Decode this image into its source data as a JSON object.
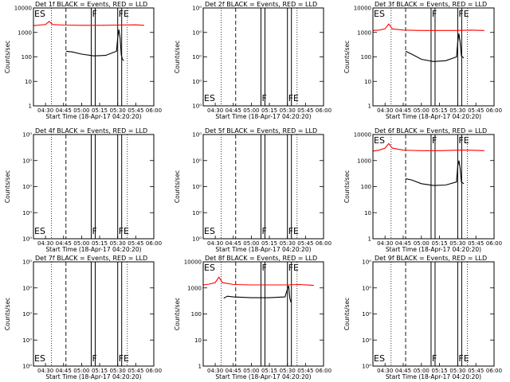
{
  "chart_data": [
    {
      "type": "line",
      "title": "Det 1f BLACK = Events, RED = LLD",
      "xlabel": "Start Time (18-Apr-17 04:20:20)",
      "ylabel": "Counts/sec",
      "yscale": "log",
      "ylim": [
        1,
        10000
      ],
      "xlim": [
        "04:20",
        "06:00"
      ],
      "ytick_labels": [
        "1",
        "10",
        "100",
        "1000",
        "10000"
      ],
      "xtick_labels": [
        "04:30",
        "04:45",
        "05:00",
        "05:15",
        "05:30",
        "05:45",
        "06:00"
      ],
      "markers": [
        {
          "label": "ES",
          "time": "04:20"
        },
        {
          "label": "F",
          "time": "05:08"
        },
        {
          "label": "FE",
          "time": "05:30"
        }
      ],
      "series": [
        {
          "color": "#ff0000",
          "x": [
            "04:20",
            "04:25",
            "04:30",
            "04:33",
            "04:36",
            "04:45",
            "05:00",
            "05:15",
            "05:30",
            "05:45",
            "05:52"
          ],
          "y": [
            1900,
            2000,
            2100,
            2800,
            2100,
            2000,
            1950,
            1950,
            2000,
            2050,
            1950
          ]
        },
        {
          "color": "#000000",
          "x": [
            "04:47",
            "04:52",
            "05:00",
            "05:10",
            "05:20",
            "05:29",
            "05:30",
            "05:31",
            "05:32",
            "05:33",
            "05:34",
            "05:35"
          ],
          "y": [
            170,
            160,
            130,
            110,
            115,
            170,
            600,
            1300,
            600,
            120,
            80,
            70
          ]
        }
      ]
    },
    {
      "type": "line",
      "title": "Det 2f BLACK = Events, RED = LLD",
      "xlabel": "Start Time (18-Apr-17 04:20:20)",
      "ylabel": "Counts/sec",
      "yscale": "log",
      "ylim": [
        1,
        10
      ],
      "xlim": [
        "04:20",
        "06:00"
      ],
      "ytick_labels": [
        "10⁰",
        "10⁰",
        "10⁰",
        "10⁰",
        "10⁰"
      ],
      "xtick_labels": [
        "04:30",
        "04:45",
        "05:00",
        "05:15",
        "05:30",
        "05:45",
        "06:00"
      ],
      "markers": [
        {
          "label": "ES",
          "time": "04:20"
        },
        {
          "label": "F",
          "time": "05:08"
        },
        {
          "label": "FE",
          "time": "05:30"
        }
      ],
      "series": []
    },
    {
      "type": "line",
      "title": "Det 3f BLACK = Events, RED = LLD",
      "xlabel": "Start Time (18-Apr-17 04:20:20)",
      "ylabel": "Counts/sec",
      "yscale": "log",
      "ylim": [
        1,
        10000
      ],
      "xlim": [
        "04:20",
        "06:00"
      ],
      "ytick_labels": [
        "1",
        "10",
        "100",
        "1000",
        "10000"
      ],
      "xtick_labels": [
        "04:30",
        "04:45",
        "05:00",
        "05:15",
        "05:30",
        "05:45",
        "06:00"
      ],
      "markers": [
        {
          "label": "ES",
          "time": "04:20"
        },
        {
          "label": "F",
          "time": "05:08"
        },
        {
          "label": "FE",
          "time": "05:30"
        }
      ],
      "series": [
        {
          "color": "#ff0000",
          "x": [
            "04:20",
            "04:25",
            "04:30",
            "04:33",
            "04:36",
            "04:45",
            "05:00",
            "05:15",
            "05:30",
            "05:40",
            "05:52"
          ],
          "y": [
            1200,
            1250,
            1400,
            2200,
            1400,
            1250,
            1200,
            1200,
            1200,
            1250,
            1200
          ]
        },
        {
          "color": "#000000",
          "x": [
            "04:47",
            "04:52",
            "05:00",
            "05:10",
            "05:20",
            "05:29",
            "05:30",
            "05:31",
            "05:32",
            "05:33",
            "05:34",
            "05:35"
          ],
          "y": [
            170,
            130,
            80,
            65,
            70,
            100,
            400,
            900,
            400,
            110,
            100,
            90
          ]
        }
      ]
    },
    {
      "type": "line",
      "title": "Det 4f BLACK = Events, RED = LLD",
      "xlabel": "Start Time (18-Apr-17 04:20:20)",
      "ylabel": "Counts/sec",
      "yscale": "log",
      "ylim": [
        1,
        10
      ],
      "xlim": [
        "04:20",
        "06:00"
      ],
      "ytick_labels": [
        "10⁰",
        "10⁰",
        "10⁰",
        "10⁰",
        "10⁰"
      ],
      "xtick_labels": [
        "04:30",
        "04:45",
        "05:00",
        "05:15",
        "05:30",
        "05:45",
        "06:00"
      ],
      "markers": [
        {
          "label": "ES",
          "time": "04:20"
        },
        {
          "label": "F",
          "time": "05:08"
        },
        {
          "label": "FE",
          "time": "05:30"
        }
      ],
      "series": []
    },
    {
      "type": "line",
      "title": "Det 5f BLACK = Events, RED = LLD",
      "xlabel": "Start Time (18-Apr-17 04:20:20)",
      "ylabel": "Counts/sec",
      "yscale": "log",
      "ylim": [
        1,
        10
      ],
      "xlim": [
        "04:20",
        "06:00"
      ],
      "ytick_labels": [
        "10⁰",
        "10⁰",
        "10⁰",
        "10⁰",
        "10⁰"
      ],
      "xtick_labels": [
        "04:30",
        "04:45",
        "05:00",
        "05:15",
        "05:30",
        "05:45",
        "06:00"
      ],
      "markers": [
        {
          "label": "ES",
          "time": "04:20"
        },
        {
          "label": "F",
          "time": "05:08"
        },
        {
          "label": "FE",
          "time": "05:30"
        }
      ],
      "series": []
    },
    {
      "type": "line",
      "title": "Det 6f BLACK = Events, RED = LLD",
      "xlabel": "Start Time (18-Apr-17 04:20:20)",
      "ylabel": "Counts/sec",
      "yscale": "log",
      "ylim": [
        1,
        10000
      ],
      "xlim": [
        "04:20",
        "06:00"
      ],
      "ytick_labels": [
        "1",
        "10",
        "100",
        "1000",
        "10000"
      ],
      "xtick_labels": [
        "04:30",
        "04:45",
        "05:00",
        "05:15",
        "05:30",
        "05:45",
        "06:00"
      ],
      "markers": [
        {
          "label": "ES",
          "time": "04:20"
        },
        {
          "label": "F",
          "time": "05:08"
        },
        {
          "label": "FE",
          "time": "05:30"
        }
      ],
      "series": [
        {
          "color": "#ff0000",
          "x": [
            "04:20",
            "04:25",
            "04:30",
            "04:33",
            "04:36",
            "04:45",
            "05:00",
            "05:15",
            "05:30",
            "05:40",
            "05:52"
          ],
          "y": [
            2300,
            2500,
            3000,
            4500,
            3000,
            2500,
            2400,
            2400,
            2500,
            2500,
            2400
          ]
        },
        {
          "color": "#000000",
          "x": [
            "04:47",
            "04:52",
            "05:00",
            "05:10",
            "05:20",
            "05:29",
            "05:30",
            "05:31",
            "05:32",
            "05:33",
            "05:34",
            "05:35"
          ],
          "y": [
            200,
            180,
            130,
            110,
            115,
            150,
            600,
            1000,
            500,
            150,
            140,
            130
          ]
        }
      ]
    },
    {
      "type": "line",
      "title": "Det 7f BLACK = Events, RED = LLD",
      "xlabel": "Start Time (18-Apr-17 04:20:20)",
      "ylabel": "Counts/sec",
      "yscale": "log",
      "ylim": [
        1,
        10
      ],
      "xlim": [
        "04:20",
        "06:00"
      ],
      "ytick_labels": [
        "10⁰",
        "10⁰",
        "10⁰",
        "10⁰",
        "10⁰"
      ],
      "xtick_labels": [
        "04:30",
        "04:45",
        "05:00",
        "05:15",
        "05:30",
        "05:45",
        "06:00"
      ],
      "markers": [
        {
          "label": "ES",
          "time": "04:20"
        },
        {
          "label": "F",
          "time": "05:08"
        },
        {
          "label": "FE",
          "time": "05:30"
        }
      ],
      "series": []
    },
    {
      "type": "line",
      "title": "Det 8f BLACK = Events, RED = LLD",
      "xlabel": "Start Time (18-Apr-17 04:20:20)",
      "ylabel": "Counts/sec",
      "yscale": "log",
      "ylim": [
        1,
        10000
      ],
      "xlim": [
        "04:20",
        "06:00"
      ],
      "ytick_labels": [
        "1",
        "10",
        "100",
        "1000",
        "10000"
      ],
      "xtick_labels": [
        "04:30",
        "04:45",
        "05:00",
        "05:15",
        "05:30",
        "05:45",
        "06:00"
      ],
      "markers": [
        {
          "label": "ES",
          "time": "04:20"
        },
        {
          "label": "F",
          "time": "05:08"
        },
        {
          "label": "FE",
          "time": "05:30"
        }
      ],
      "series": [
        {
          "color": "#ff0000",
          "x": [
            "04:20",
            "04:25",
            "04:30",
            "04:33",
            "04:36",
            "04:45",
            "05:00",
            "05:15",
            "05:30",
            "05:40",
            "05:52"
          ],
          "y": [
            1300,
            1400,
            1600,
            2600,
            1600,
            1350,
            1300,
            1300,
            1300,
            1350,
            1250
          ]
        },
        {
          "color": "#000000",
          "x": [
            "04:37",
            "04:40",
            "04:45",
            "05:00",
            "05:15",
            "05:28",
            "05:30",
            "05:31",
            "05:32",
            "05:33"
          ],
          "y": [
            400,
            480,
            450,
            420,
            420,
            450,
            900,
            1200,
            400,
            280
          ]
        }
      ]
    },
    {
      "type": "line",
      "title": "Det 9f BLACK = Events, RED = LLD",
      "xlabel": "Start Time (18-Apr-17 04:20:20)",
      "ylabel": "Counts/sec",
      "yscale": "log",
      "ylim": [
        1,
        10
      ],
      "xlim": [
        "04:20",
        "06:00"
      ],
      "ytick_labels": [
        "10⁰",
        "10⁰",
        "10⁰",
        "10⁰",
        "10⁰"
      ],
      "xtick_labels": [
        "04:30",
        "04:45",
        "05:00",
        "05:15",
        "05:30",
        "05:45",
        "06:00"
      ],
      "markers": [
        {
          "label": "ES",
          "time": "04:20"
        },
        {
          "label": "F",
          "time": "05:08"
        },
        {
          "label": "FE",
          "time": "05:30"
        }
      ],
      "series": []
    }
  ]
}
